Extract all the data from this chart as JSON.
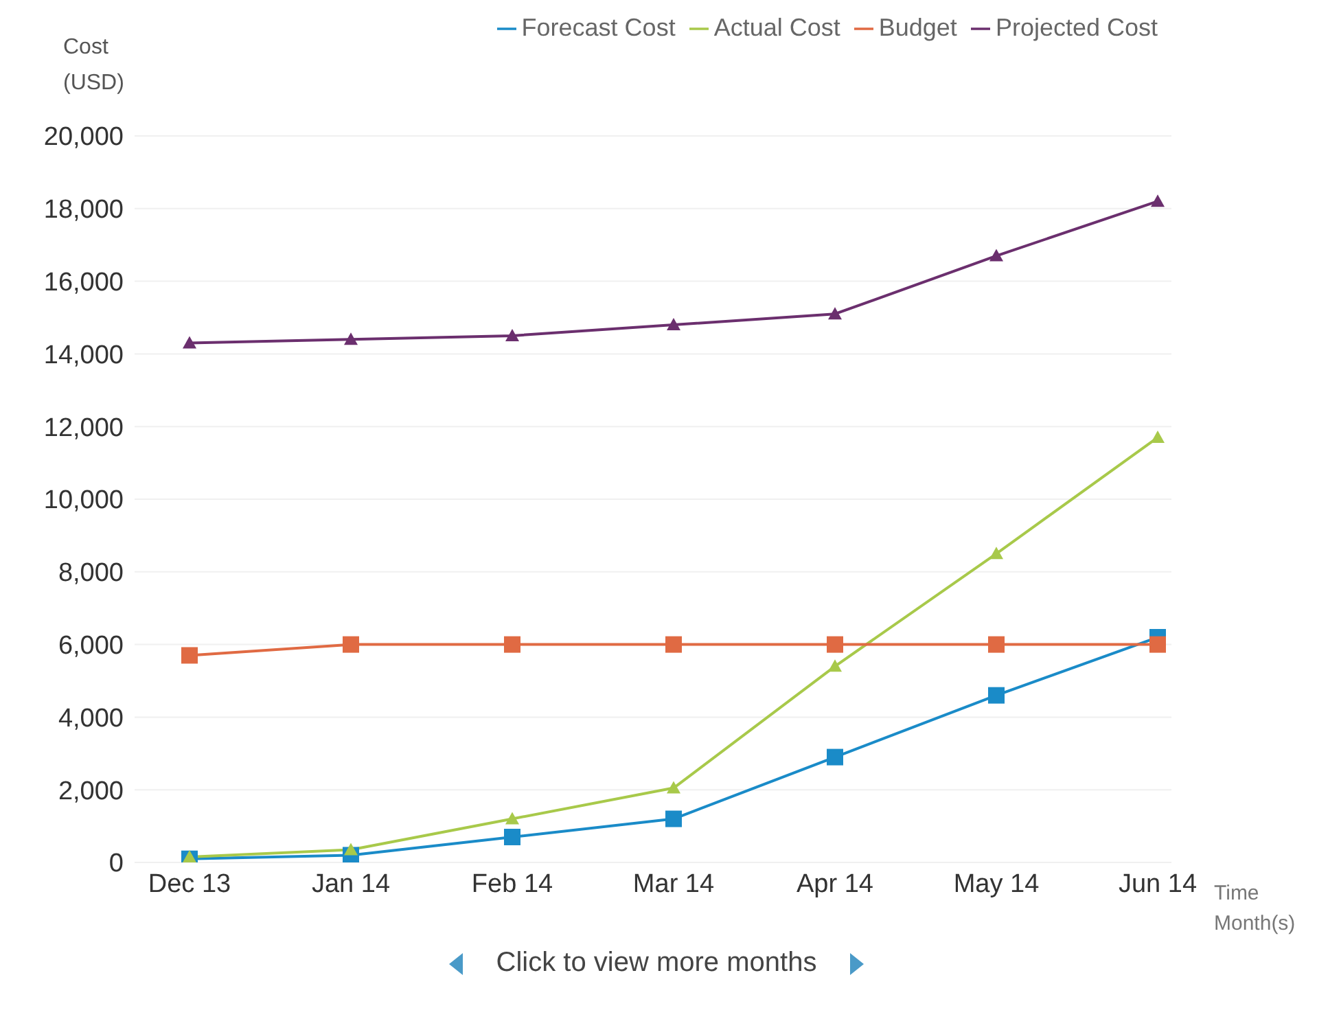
{
  "chart_data": {
    "type": "line",
    "ylabel": "Cost (USD)",
    "xlabel": "Time Month(s)",
    "categories": [
      "Dec 13",
      "Jan 14",
      "Feb 14",
      "Mar 14",
      "Apr 14",
      "May 14",
      "Jun 14"
    ],
    "series": [
      {
        "name": "Forecast Cost",
        "color": "#1a8bc8",
        "marker": "square",
        "values": [
          100,
          200,
          700,
          1200,
          2900,
          4600,
          6200
        ]
      },
      {
        "name": "Actual Cost",
        "color": "#a8c94a",
        "marker": "triangle",
        "values": [
          150,
          350,
          1200,
          2050,
          5400,
          8500,
          11700
        ]
      },
      {
        "name": "Budget",
        "color": "#e06a43",
        "marker": "square",
        "values": [
          5700,
          6000,
          6000,
          6000,
          6000,
          6000,
          6000
        ]
      },
      {
        "name": "Projected Cost",
        "color": "#6b2f6e",
        "marker": "triangle",
        "values": [
          14300,
          14400,
          14500,
          14800,
          15100,
          16700,
          18200
        ]
      }
    ],
    "ylim": [
      0,
      20000
    ],
    "yticks": [
      0,
      {
        "value": 2000,
        "label": "2,000"
      },
      {
        "value": 4000,
        "label": "4,000"
      },
      {
        "value": 6000,
        "label": "6,000"
      },
      {
        "value": 8000,
        "label": "8,000"
      },
      {
        "value": 10000,
        "label": "10,000"
      },
      {
        "value": 12000,
        "label": "12,000"
      },
      {
        "value": 14000,
        "label": "14,000"
      },
      {
        "value": 16000,
        "label": "16,000"
      },
      {
        "value": 18000,
        "label": "18,000"
      },
      {
        "value": 20000,
        "label": "20,000"
      }
    ],
    "grid": "y",
    "legend": "top right",
    "line_style": "solid",
    "annotations": [
      "Click to view more months"
    ]
  }
}
